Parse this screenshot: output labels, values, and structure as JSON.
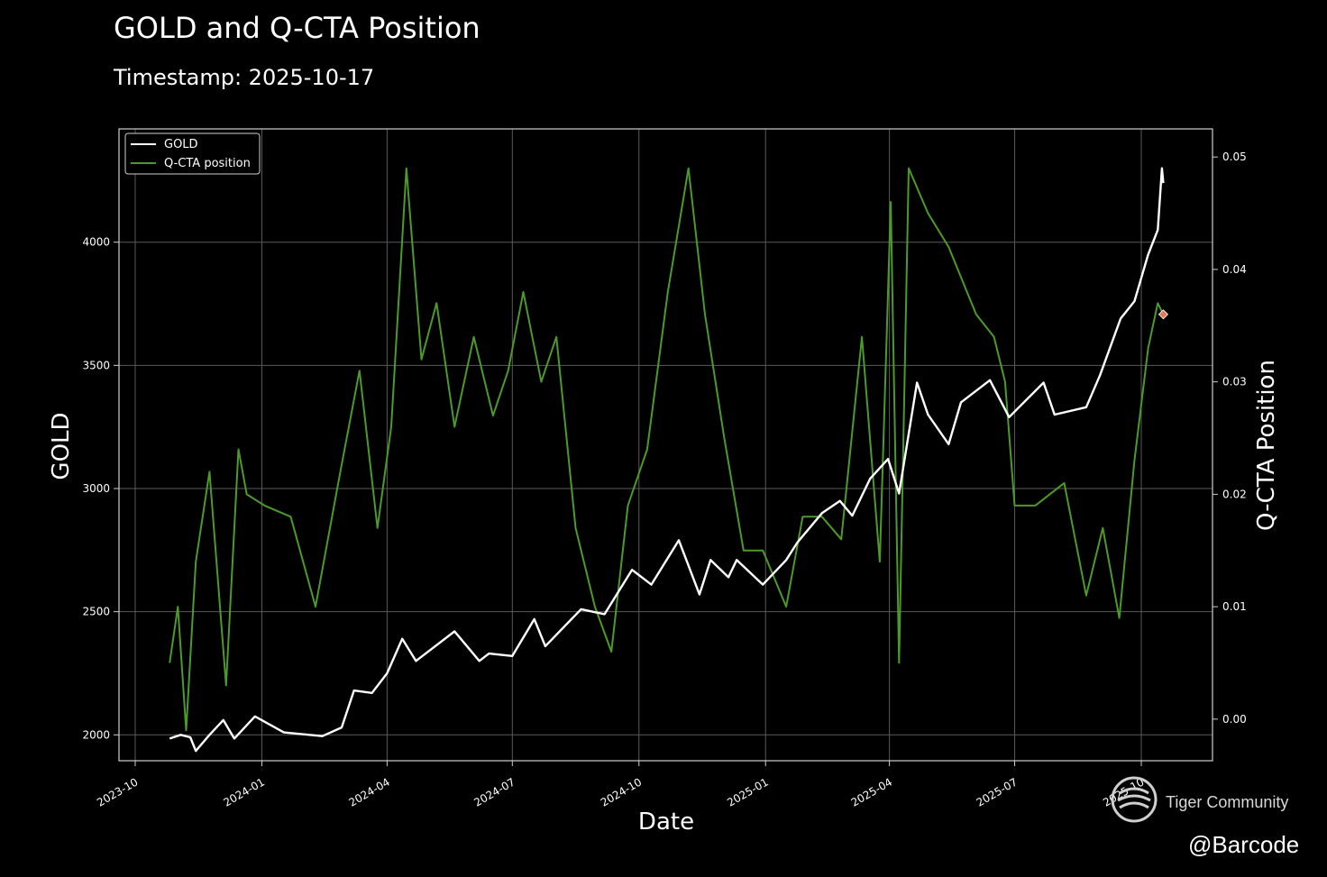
{
  "chart_data": {
    "type": "line",
    "title": "GOLD and Q-CTA Position",
    "subtitle": "Timestamp: 2025-10-17",
    "xlabel": "Date",
    "ylabel": "GOLD",
    "y2label": "Q-CTA Position",
    "x_ticks": [
      "2023-10",
      "2024-01",
      "2024-04",
      "2024-07",
      "2024-10",
      "2025-01",
      "2025-04",
      "2025-07",
      "2025-10"
    ],
    "y_ticks": [
      2000,
      2500,
      3000,
      3500,
      4000
    ],
    "y2_ticks": [
      "0.00",
      "0.01",
      "0.02",
      "0.03",
      "0.04",
      "0.05"
    ],
    "ylim": [
      1895,
      4460
    ],
    "y2lim": [
      -0.0037,
      0.0525
    ],
    "grid": true,
    "legend_position": "upper-left",
    "legend": [
      "GOLD",
      "Q-CTA position"
    ],
    "marker": {
      "date": "2025-10-17",
      "value": 0.036,
      "axis": "y2",
      "color": "#e07a5f"
    },
    "series": [
      {
        "name": "GOLD",
        "axis": "y",
        "color": "#ffffff",
        "x": [
          "2023-10-26",
          "2023-11-03",
          "2023-11-10",
          "2023-11-14",
          "2023-11-24",
          "2023-12-04",
          "2023-12-12",
          "2023-12-27",
          "2024-01-17",
          "2024-02-14",
          "2024-02-28",
          "2024-03-08",
          "2024-03-21",
          "2024-04-01",
          "2024-04-12",
          "2024-04-22",
          "2024-05-20",
          "2024-06-07",
          "2024-06-14",
          "2024-07-01",
          "2024-07-17",
          "2024-07-25",
          "2024-08-20",
          "2024-09-06",
          "2024-09-26",
          "2024-10-10",
          "2024-10-30",
          "2024-11-14",
          "2024-11-22",
          "2024-12-05",
          "2024-12-11",
          "2024-12-30",
          "2025-01-16",
          "2025-01-24",
          "2025-02-11",
          "2025-02-24",
          "2025-03-05",
          "2025-03-18",
          "2025-03-31",
          "2025-04-08",
          "2025-04-21",
          "2025-04-29",
          "2025-05-14",
          "2025-05-23",
          "2025-06-13",
          "2025-06-27",
          "2025-07-22",
          "2025-07-30",
          "2025-08-22",
          "2025-09-01",
          "2025-09-16",
          "2025-09-26",
          "2025-10-06",
          "2025-10-13",
          "2025-10-16",
          "2025-10-17"
        ],
        "values": [
          1985,
          2000,
          1990,
          1935,
          2000,
          2060,
          1985,
          2075,
          2010,
          1995,
          2030,
          2180,
          2170,
          2250,
          2390,
          2300,
          2420,
          2300,
          2330,
          2320,
          2470,
          2360,
          2510,
          2490,
          2670,
          2610,
          2790,
          2570,
          2710,
          2640,
          2710,
          2610,
          2710,
          2780,
          2900,
          2950,
          2890,
          3040,
          3120,
          2980,
          3430,
          3300,
          3180,
          3350,
          3440,
          3290,
          3430,
          3300,
          3330,
          3460,
          3690,
          3760,
          3950,
          4050,
          4300,
          4240
        ]
      },
      {
        "name": "Q-CTA position",
        "axis": "y2",
        "color": "#4c9a2a",
        "x": [
          "2023-10-26",
          "2023-11-01",
          "2023-11-07",
          "2023-11-14",
          "2023-11-24",
          "2023-12-06",
          "2023-12-15",
          "2023-12-21",
          "2024-01-03",
          "2024-01-22",
          "2024-02-09",
          "2024-02-27",
          "2024-03-12",
          "2024-03-25",
          "2024-04-04",
          "2024-04-15",
          "2024-04-26",
          "2024-05-07",
          "2024-05-20",
          "2024-06-03",
          "2024-06-17",
          "2024-06-28",
          "2024-07-09",
          "2024-07-22",
          "2024-08-02",
          "2024-08-16",
          "2024-08-30",
          "2024-09-11",
          "2024-09-23",
          "2024-10-07",
          "2024-10-22",
          "2024-11-06",
          "2024-11-18",
          "2024-12-02",
          "2024-12-16",
          "2024-12-30",
          "2025-01-16",
          "2025-01-28",
          "2025-02-11",
          "2025-02-25",
          "2025-03-12",
          "2025-03-25",
          "2025-04-02",
          "2025-04-08",
          "2025-04-15",
          "2025-04-29",
          "2025-05-14",
          "2025-06-03",
          "2025-06-16",
          "2025-06-24",
          "2025-07-01",
          "2025-07-16",
          "2025-08-06",
          "2025-08-22",
          "2025-09-03",
          "2025-09-15",
          "2025-09-26",
          "2025-10-06",
          "2025-10-13",
          "2025-10-17"
        ],
        "values": [
          0.005,
          0.01,
          -0.001,
          0.014,
          0.022,
          0.003,
          0.024,
          0.02,
          0.019,
          0.018,
          0.01,
          0.022,
          0.031,
          0.017,
          0.026,
          0.049,
          0.032,
          0.037,
          0.026,
          0.034,
          0.027,
          0.031,
          0.038,
          0.03,
          0.034,
          0.017,
          0.01,
          0.006,
          0.019,
          0.024,
          0.038,
          0.049,
          0.036,
          0.025,
          0.015,
          0.015,
          0.01,
          0.018,
          0.018,
          0.016,
          0.034,
          0.014,
          0.046,
          0.005,
          0.049,
          0.045,
          0.042,
          0.036,
          0.034,
          0.03,
          0.019,
          0.019,
          0.021,
          0.011,
          0.017,
          0.009,
          0.023,
          0.033,
          0.037,
          0.036
        ]
      }
    ]
  },
  "watermark": {
    "brand": "Tiger Community",
    "handle": "@Barcode",
    "icon": "tiger-stripes-logo"
  }
}
